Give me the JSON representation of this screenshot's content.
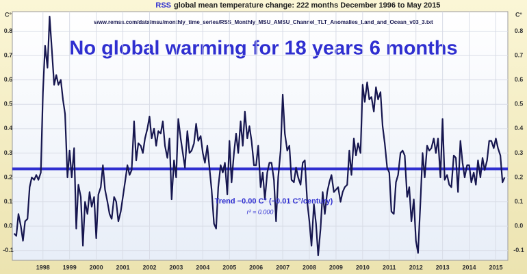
{
  "chart_data": {
    "type": "line",
    "title_prefix": "RSS",
    "title": "global mean temperature change: 222 months December 1996 to May 2015",
    "source": "www.remss.com/data/msu/monthly_time_series/RSS_Monthly_MSU_AMSU_Channel_TLT_Anomalies_Land_and_Ocean_v03_3.txt",
    "headline": "No global warming for 18 years 6 months",
    "y_label": "C°",
    "xlim": [
      1996.85,
      2015.45
    ],
    "xticks": [
      1998,
      1999,
      2000,
      2001,
      2002,
      2003,
      2004,
      2005,
      2006,
      2007,
      2008,
      2009,
      2010,
      2011,
      2012,
      2013,
      2014,
      2015
    ],
    "ylim": [
      -0.14,
      0.88
    ],
    "yticks": [
      -0.1,
      {
        "value": 0,
        "label": "0.0"
      },
      0.1,
      0.2,
      0.3,
      0.4,
      0.5,
      0.6,
      0.7,
      0.8
    ],
    "grid": true,
    "trend": {
      "value": 0.235,
      "color": "#2f2fd0",
      "label": "Trend −0.00 C° (−0.01 C°/century)",
      "r2": "r² = 0.000"
    },
    "x": [
      1996.92,
      1997.0,
      1997.08,
      1997.17,
      1997.25,
      1997.33,
      1997.42,
      1997.5,
      1997.58,
      1997.67,
      1997.75,
      1997.83,
      1997.92,
      1998.0,
      1998.08,
      1998.17,
      1998.25,
      1998.33,
      1998.42,
      1998.5,
      1998.58,
      1998.67,
      1998.75,
      1998.83,
      1998.92,
      1999.0,
      1999.08,
      1999.17,
      1999.25,
      1999.33,
      1999.42,
      1999.5,
      1999.58,
      1999.67,
      1999.75,
      1999.83,
      1999.92,
      2000.0,
      2000.08,
      2000.17,
      2000.25,
      2000.33,
      2000.42,
      2000.5,
      2000.58,
      2000.67,
      2000.75,
      2000.83,
      2000.92,
      2001.0,
      2001.08,
      2001.17,
      2001.25,
      2001.33,
      2001.42,
      2001.5,
      2001.58,
      2001.67,
      2001.75,
      2001.83,
      2001.92,
      2002.0,
      2002.08,
      2002.17,
      2002.25,
      2002.33,
      2002.42,
      2002.5,
      2002.58,
      2002.67,
      2002.75,
      2002.83,
      2002.92,
      2003.0,
      2003.08,
      2003.17,
      2003.25,
      2003.33,
      2003.42,
      2003.5,
      2003.58,
      2003.67,
      2003.75,
      2003.83,
      2003.92,
      2004.0,
      2004.08,
      2004.17,
      2004.25,
      2004.33,
      2004.42,
      2004.5,
      2004.58,
      2004.67,
      2004.75,
      2004.83,
      2004.92,
      2005.0,
      2005.08,
      2005.17,
      2005.25,
      2005.33,
      2005.42,
      2005.5,
      2005.58,
      2005.67,
      2005.75,
      2005.83,
      2005.92,
      2006.0,
      2006.08,
      2006.17,
      2006.25,
      2006.33,
      2006.42,
      2006.5,
      2006.58,
      2006.67,
      2006.75,
      2006.83,
      2006.92,
      2007.0,
      2007.08,
      2007.17,
      2007.25,
      2007.33,
      2007.42,
      2007.5,
      2007.58,
      2007.67,
      2007.75,
      2007.83,
      2007.92,
      2008.0,
      2008.08,
      2008.17,
      2008.25,
      2008.33,
      2008.42,
      2008.5,
      2008.58,
      2008.67,
      2008.75,
      2008.83,
      2008.92,
      2009.0,
      2009.08,
      2009.17,
      2009.25,
      2009.33,
      2009.42,
      2009.5,
      2009.58,
      2009.67,
      2009.75,
      2009.83,
      2009.92,
      2010.0,
      2010.08,
      2010.17,
      2010.25,
      2010.33,
      2010.42,
      2010.5,
      2010.58,
      2010.67,
      2010.75,
      2010.83,
      2010.92,
      2011.0,
      2011.08,
      2011.17,
      2011.25,
      2011.33,
      2011.42,
      2011.5,
      2011.58,
      2011.67,
      2011.75,
      2011.83,
      2011.92,
      2012.0,
      2012.08,
      2012.17,
      2012.25,
      2012.33,
      2012.42,
      2012.5,
      2012.58,
      2012.67,
      2012.75,
      2012.83,
      2012.92,
      2013.0,
      2013.08,
      2013.17,
      2013.25,
      2013.33,
      2013.42,
      2013.5,
      2013.58,
      2013.67,
      2013.75,
      2013.83,
      2013.92,
      2014.0,
      2014.08,
      2014.17,
      2014.25,
      2014.33,
      2014.42,
      2014.5,
      2014.58,
      2014.67,
      2014.75,
      2014.83,
      2014.92,
      2015.0,
      2015.08,
      2015.17,
      2015.25,
      2015.33
    ],
    "series": [
      {
        "color": "#16164f",
        "values": [
          -0.03,
          -0.04,
          0.05,
          0.0,
          -0.06,
          0.02,
          0.03,
          0.16,
          0.2,
          0.19,
          0.21,
          0.19,
          0.22,
          0.55,
          0.74,
          0.65,
          0.86,
          0.73,
          0.58,
          0.62,
          0.58,
          0.6,
          0.52,
          0.46,
          0.2,
          0.31,
          0.2,
          0.32,
          -0.01,
          0.17,
          0.12,
          -0.08,
          0.1,
          0.05,
          0.14,
          0.08,
          0.12,
          -0.05,
          0.13,
          0.16,
          0.25,
          0.15,
          0.1,
          0.05,
          0.03,
          0.12,
          0.1,
          0.02,
          0.06,
          0.12,
          0.18,
          0.25,
          0.21,
          0.23,
          0.43,
          0.27,
          0.34,
          0.33,
          0.3,
          0.36,
          0.4,
          0.45,
          0.36,
          0.4,
          0.33,
          0.39,
          0.38,
          0.43,
          0.33,
          0.28,
          0.36,
          0.11,
          0.27,
          0.2,
          0.44,
          0.36,
          0.3,
          0.24,
          0.39,
          0.3,
          0.31,
          0.34,
          0.42,
          0.35,
          0.37,
          0.3,
          0.26,
          0.33,
          0.24,
          0.15,
          0.01,
          -0.01,
          0.16,
          0.25,
          0.22,
          0.26,
          0.13,
          0.35,
          0.18,
          0.3,
          0.38,
          0.3,
          0.43,
          0.33,
          0.47,
          0.36,
          0.41,
          0.35,
          0.25,
          0.25,
          0.33,
          0.16,
          0.22,
          0.11,
          0.22,
          0.26,
          0.26,
          0.19,
          0.02,
          0.2,
          0.31,
          0.54,
          0.38,
          0.31,
          0.33,
          0.19,
          0.18,
          0.24,
          0.2,
          0.17,
          0.26,
          0.27,
          0.1,
          0.02,
          -0.08,
          0.09,
          0.01,
          -0.12,
          -0.01,
          0.14,
          0.05,
          0.14,
          0.18,
          0.21,
          0.14,
          0.15,
          0.16,
          0.1,
          0.14,
          0.16,
          0.17,
          0.31,
          0.21,
          0.36,
          0.29,
          0.34,
          0.3,
          0.58,
          0.51,
          0.59,
          0.52,
          0.53,
          0.47,
          0.57,
          0.52,
          0.55,
          0.41,
          0.34,
          0.24,
          0.22,
          0.06,
          0.05,
          0.18,
          0.21,
          0.3,
          0.31,
          0.29,
          0.12,
          0.16,
          0.02,
          0.11,
          -0.06,
          -0.11,
          0.1,
          0.3,
          0.2,
          0.33,
          0.31,
          0.32,
          0.36,
          0.3,
          0.36,
          0.2,
          0.44,
          0.19,
          0.21,
          0.17,
          0.16,
          0.29,
          0.28,
          0.14,
          0.35,
          0.26,
          0.2,
          0.25,
          0.25,
          0.18,
          0.22,
          0.17,
          0.27,
          0.2,
          0.28,
          0.23,
          0.27,
          0.35,
          0.35,
          0.32,
          0.36,
          0.32,
          0.29,
          0.18,
          0.2
        ]
      }
    ]
  }
}
